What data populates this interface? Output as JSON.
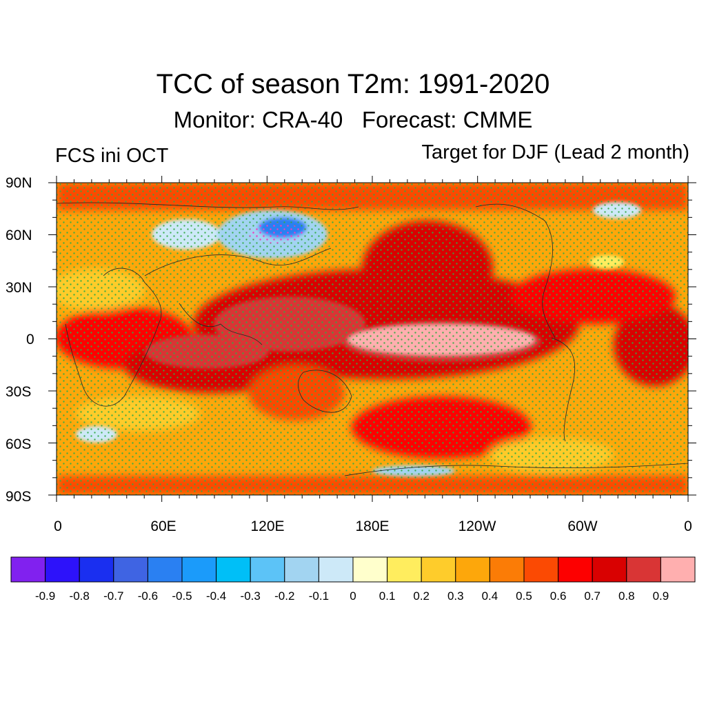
{
  "title": "TCC of season T2m: 1991-2020",
  "subtitle": "Monitor: CRA-40   Forecast: CMME",
  "left_label": "FCS ini OCT",
  "right_label": "Target for DJF (Lead 2 month)",
  "lat_labels": [
    "90N",
    "60N",
    "30N",
    "0",
    "30S",
    "60S",
    "90S"
  ],
  "lon_labels": [
    "0",
    "60E",
    "120E",
    "180E",
    "120W",
    "60W",
    "0"
  ],
  "colorbar": {
    "colors": [
      "#8121ef",
      "#2d12fa",
      "#1a2ff0",
      "#3f64e3",
      "#2a80f2",
      "#1b9bfa",
      "#00bff7",
      "#5cc3f7",
      "#a2d4f1",
      "#cde9f8",
      "#ffffcc",
      "#ffed5e",
      "#fecc2b",
      "#fda70b",
      "#fb7c06",
      "#fb4a03",
      "#fd0000",
      "#d90101",
      "#d93535",
      "#ffafaf"
    ],
    "labels": [
      "-0.9",
      "-0.8",
      "-0.7",
      "-0.6",
      "-0.5",
      "-0.4",
      "-0.3",
      "-0.2",
      "-0.1",
      "0",
      "0.1",
      "0.2",
      "0.3",
      "0.4",
      "0.5",
      "0.6",
      "0.7",
      "0.8",
      "0.9"
    ]
  },
  "stipple_color": "#33aa44"
}
